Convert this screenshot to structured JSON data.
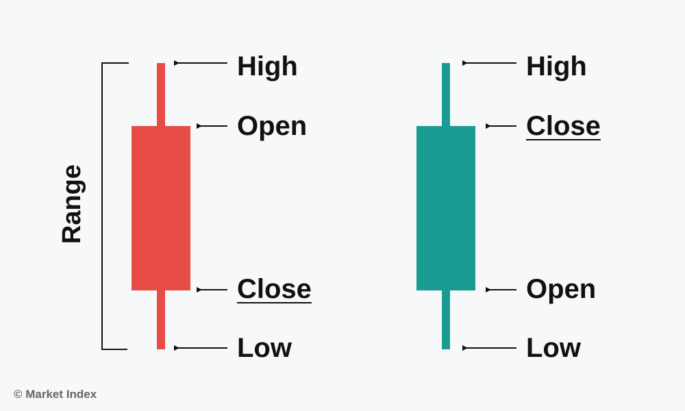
{
  "colors": {
    "bearish": "#e74c47",
    "bullish": "#1b9c92",
    "text": "#111111",
    "background": "#f7f8fa"
  },
  "range_label": "Range",
  "bearish_candle": {
    "labels": {
      "high": "High",
      "open": "Open",
      "close": "Close",
      "low": "Low"
    }
  },
  "bullish_candle": {
    "labels": {
      "high": "High",
      "close": "Close",
      "open": "Open",
      "low": "Low"
    }
  },
  "footer": {
    "copyright": "© Market Index"
  }
}
